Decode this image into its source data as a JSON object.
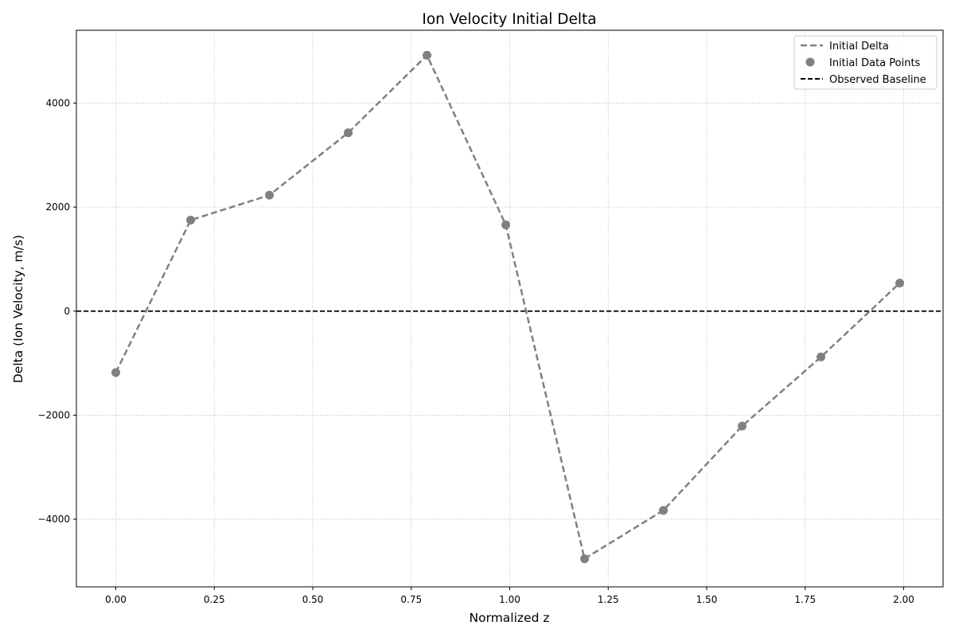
{
  "chart_data": {
    "type": "line",
    "title": "Ion Velocity Initial Delta",
    "xlabel": "Normalized z",
    "ylabel": "Delta (Ion Velocity, m/s)",
    "xlim": [
      -0.1,
      2.1
    ],
    "ylim": [
      -5300,
      5400
    ],
    "xticks": [
      0.0,
      0.25,
      0.5,
      0.75,
      1.0,
      1.25,
      1.5,
      1.75,
      2.0
    ],
    "xtick_labels": [
      "0.00",
      "0.25",
      "0.50",
      "0.75",
      "1.00",
      "1.25",
      "1.50",
      "1.75",
      "2.00"
    ],
    "yticks": [
      -4000,
      -2000,
      0,
      2000,
      4000
    ],
    "ytick_labels": [
      "−4000",
      "−2000",
      "0",
      "2000",
      "4000"
    ],
    "grid": true,
    "legend_position": "top-right",
    "x": [
      0.0,
      0.19,
      0.39,
      0.59,
      0.79,
      0.99,
      1.19,
      1.39,
      1.59,
      1.79,
      1.99
    ],
    "series": [
      {
        "name": "Initial Delta",
        "style": "dashed-line",
        "color": "#808080",
        "values": [
          -1180,
          1750,
          2230,
          3430,
          4920,
          1660,
          -4760,
          -3830,
          -2210,
          -880,
          540
        ]
      },
      {
        "name": "Initial Data Points",
        "style": "markers",
        "color": "#808080",
        "values": [
          -1180,
          1750,
          2230,
          3430,
          4920,
          1660,
          -4760,
          -3830,
          -2210,
          -880,
          540
        ]
      },
      {
        "name": "Observed Baseline",
        "style": "dashed-hline",
        "color": "#000000",
        "y": 0
      }
    ]
  }
}
